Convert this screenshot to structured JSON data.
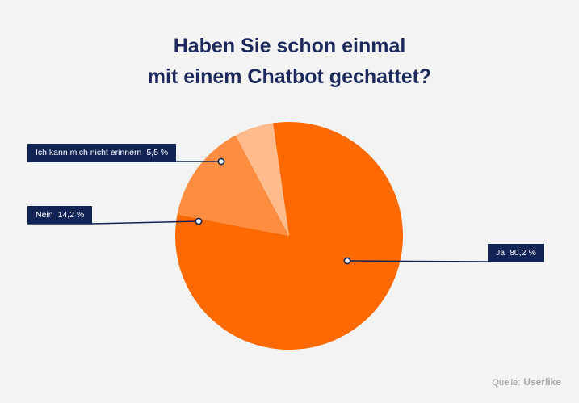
{
  "chart_data": {
    "type": "pie",
    "title_lines": [
      "Haben Sie schon einmal",
      "mit einem Chatbot gechattet?"
    ],
    "slices": [
      {
        "label": "Ja",
        "value_label": "80,2 %",
        "value": 80.2,
        "color": "#ff6a00"
      },
      {
        "label": "Nein",
        "value_label": "14,2 %",
        "value": 14.2,
        "color": "#ff8d3f"
      },
      {
        "label": "Ich kann mich nicht erinnern",
        "value_label": "5,5 %",
        "value": 5.5,
        "color": "#ffbb8c"
      }
    ],
    "legend": "callout-labels"
  },
  "source": {
    "label": "Quelle:",
    "brand": "Userlike"
  }
}
